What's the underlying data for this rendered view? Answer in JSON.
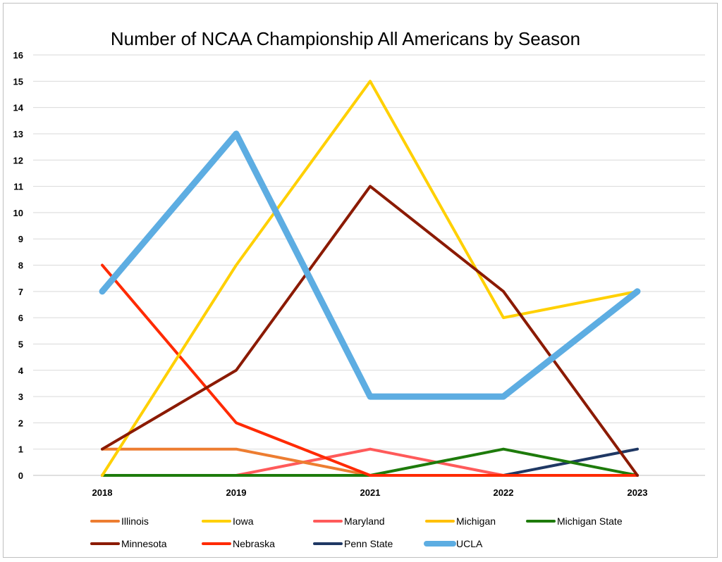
{
  "chart_data": {
    "type": "line",
    "title": "Number of NCAA Championship All Americans by Season",
    "xlabel": "",
    "ylabel": "",
    "categories": [
      "2018",
      "2019",
      "2021",
      "2022",
      "2023"
    ],
    "ylim": [
      0,
      16
    ],
    "yticks": [
      0,
      1,
      2,
      3,
      4,
      5,
      6,
      7,
      8,
      9,
      10,
      11,
      12,
      13,
      14,
      15,
      16
    ],
    "grid": true,
    "legend_position": "bottom",
    "series": [
      {
        "name": "Illinois",
        "values": [
          1,
          1,
          0,
          0,
          0
        ],
        "color": "#ED7D31"
      },
      {
        "name": "Iowa",
        "values": [
          0,
          8,
          15,
          6,
          7
        ],
        "color": "#FFD000"
      },
      {
        "name": "Maryland",
        "values": [
          0,
          0,
          1,
          0,
          0
        ],
        "color": "#FF5A5A"
      },
      {
        "name": "Michigan",
        "values": [
          0,
          0,
          0,
          0,
          0
        ],
        "color": "#FFC000"
      },
      {
        "name": "Michigan State",
        "values": [
          0,
          0,
          0,
          1,
          0
        ],
        "color": "#1E7B0B"
      },
      {
        "name": "Minnesota",
        "values": [
          1,
          4,
          11,
          7,
          0
        ],
        "color": "#8B1A00"
      },
      {
        "name": "Nebraska",
        "values": [
          8,
          2,
          0,
          0,
          0
        ],
        "color": "#FF2A00"
      },
      {
        "name": "Penn State",
        "values": [
          0,
          0,
          0,
          0,
          1
        ],
        "color": "#1F3864"
      },
      {
        "name": "UCLA",
        "values": [
          7,
          13,
          3,
          3,
          7
        ],
        "color": "#5DADE2"
      }
    ]
  }
}
